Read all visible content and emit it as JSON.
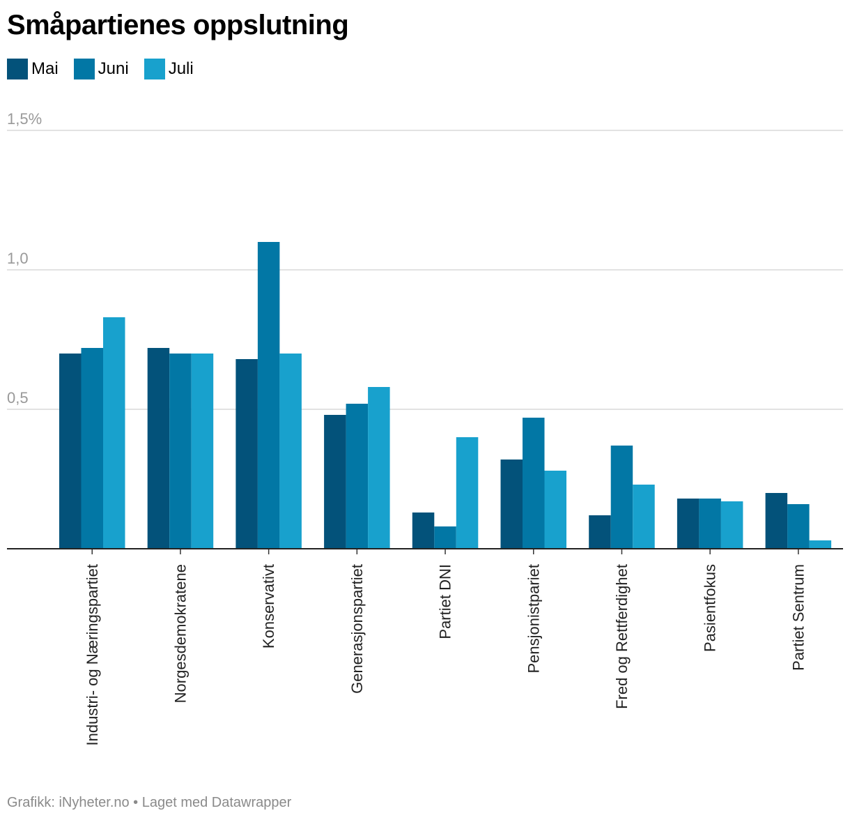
{
  "title": "Småpartienes oppslutning",
  "footer": "Grafikk: iNyheter.no • Laget med Datawrapper",
  "chart_data": {
    "type": "bar",
    "title": "Småpartienes oppslutning",
    "categories": [
      "Industri- og Næringspartiet",
      "Norgesdemokratene",
      "Konservativt",
      "Generasjonspartiet",
      "Partiet DNI",
      "Pensjonistpariet",
      "Fred og Rettferdighet",
      "Pasientfokus",
      "Partiet Sentrum"
    ],
    "series": [
      {
        "name": "Mai",
        "color": "#03527a",
        "values": [
          0.7,
          0.72,
          0.68,
          0.48,
          0.13,
          0.32,
          0.12,
          0.18,
          0.2
        ]
      },
      {
        "name": "Juni",
        "color": "#0277a5",
        "values": [
          0.72,
          0.7,
          1.1,
          0.52,
          0.08,
          0.47,
          0.37,
          0.18,
          0.16
        ]
      },
      {
        "name": "Juli",
        "color": "#18a1cd",
        "values": [
          0.83,
          0.7,
          0.7,
          0.58,
          0.4,
          0.28,
          0.23,
          0.17,
          0.03
        ]
      }
    ],
    "yticks": [
      "0,5",
      "1,0",
      "1,5%"
    ],
    "ytick_values": [
      0.5,
      1.0,
      1.5
    ],
    "ylim": [
      0,
      1.5
    ],
    "grid": true,
    "legend": "top-left"
  }
}
